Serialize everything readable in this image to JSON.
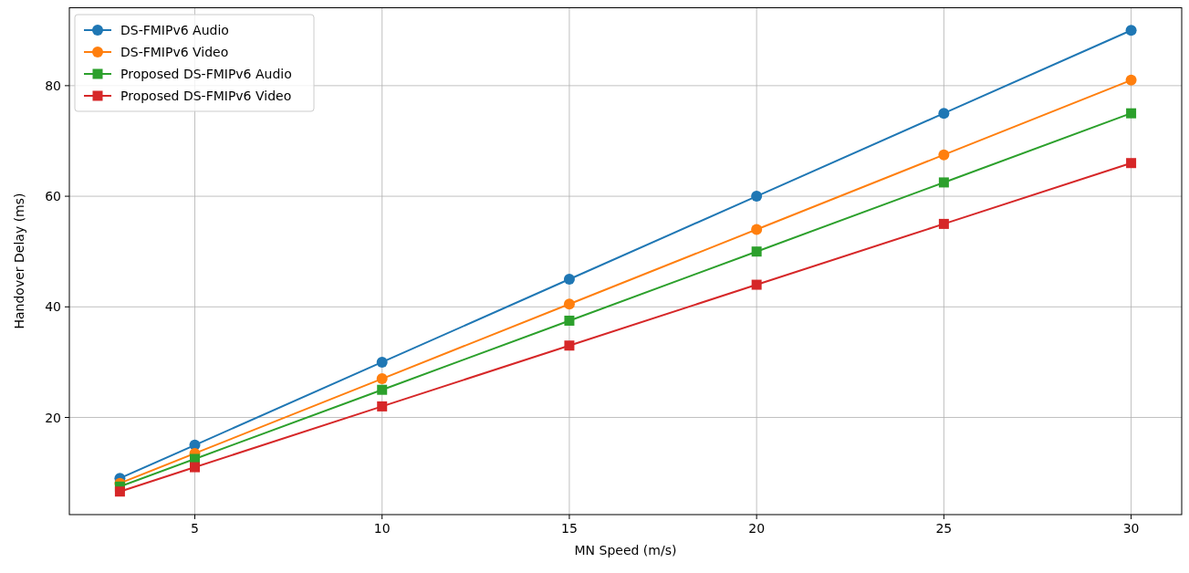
{
  "chart_data": {
    "type": "line",
    "xlabel": "MN Speed (m/s)",
    "ylabel": "Handover Delay (ms)",
    "x": [
      3,
      5,
      10,
      15,
      20,
      25,
      30
    ],
    "series": [
      {
        "name": "DS-FMIPv6 Audio",
        "color": "#1f77b4",
        "marker": "circle",
        "values": [
          9,
          15,
          30,
          45,
          60,
          75,
          90
        ]
      },
      {
        "name": "DS-FMIPv6 Video",
        "color": "#ff7f0e",
        "marker": "circle",
        "values": [
          8.1,
          13.5,
          27,
          40.5,
          54,
          67.5,
          81
        ]
      },
      {
        "name": "Proposed DS-FMIPv6 Audio",
        "color": "#2ca02c",
        "marker": "square",
        "values": [
          7.5,
          12.5,
          25,
          37.5,
          50,
          62.5,
          75
        ]
      },
      {
        "name": "Proposed DS-FMIPv6 Video",
        "color": "#d62728",
        "marker": "square",
        "values": [
          6.6,
          11,
          22,
          33,
          44,
          55,
          66
        ]
      }
    ],
    "xlim": [
      1.65,
      31.35
    ],
    "xticks": [
      5,
      10,
      15,
      20,
      25,
      30
    ],
    "ylim": [
      2.43,
      94.17
    ],
    "yticks": [
      20,
      40,
      60,
      80
    ],
    "grid": true,
    "legend": "top left",
    "line_style": "solid"
  }
}
